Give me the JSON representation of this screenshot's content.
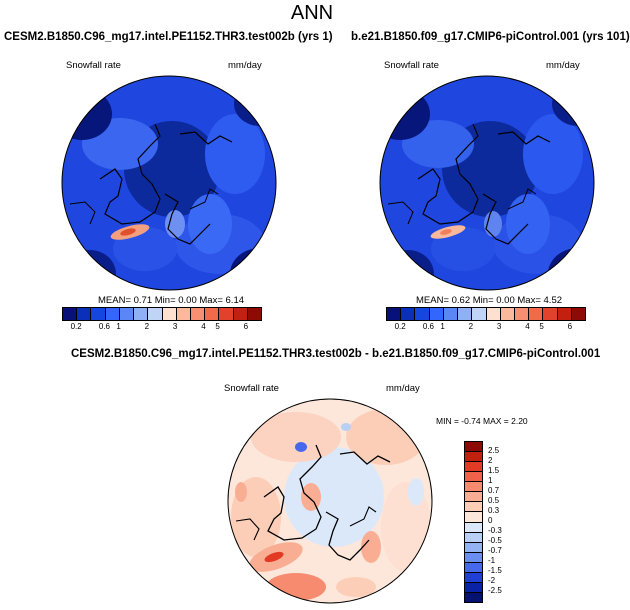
{
  "page": {
    "title": "ANN"
  },
  "panels": [
    {
      "case_title": "CESM2.B1850.C96_mg17.intel.PE1152.THR3.test002b (yrs 1)",
      "var_label": "Snowfall rate",
      "units": "mm/day",
      "stats": "MEAN=  0.71  Min=  0.00  Max=  6.14"
    },
    {
      "case_title": "b.e21.B1850.f09_g17.CMIP6-piControl.001 (yrs 101)",
      "var_label": "Snowfall rate",
      "units": "mm/day",
      "stats": "MEAN=  0.62  Min=  0.00  Max=  4.52"
    }
  ],
  "diff_panel": {
    "title": "CESM2.B1850.C96_mg17.intel.PE1152.THR3.test002b - b.e21.B1850.f09_g17.CMIP6-piControl.001",
    "var_label": "Snowfall rate",
    "units": "mm/day",
    "stats": "MIN = -0.74 MAX =   2.20"
  },
  "colorbar_main": {
    "labels": [
      "0.2",
      "0.6",
      "1",
      "2",
      "3",
      "4",
      "5",
      "6"
    ],
    "colors": [
      "#08107a",
      "#0a2fb8",
      "#1646e0",
      "#3366ff",
      "#5b86f5",
      "#8fb0f5",
      "#c0d4f7",
      "#fde0d0",
      "#fbb89c",
      "#f79072",
      "#f26a4a",
      "#e3412b",
      "#c4200f",
      "#8e0a04"
    ]
  },
  "colorbar_diff": {
    "labels": [
      "2.5",
      "2",
      "1.5",
      "1",
      "0.7",
      "0.5",
      "0.3",
      "0",
      "-0.3",
      "-0.5",
      "-0.7",
      "-1",
      "-1.5",
      "-2",
      "-2.5"
    ],
    "colors": [
      "#8b0a05",
      "#c2200e",
      "#e23a24",
      "#f2624a",
      "#f68b6f",
      "#f9ae93",
      "#fcceb8",
      "#fde6da",
      "#dbe8fa",
      "#b9d0f6",
      "#93b3f2",
      "#6b8ff0",
      "#4668ec",
      "#1f3fd6",
      "#0a22a8",
      "#061270"
    ]
  }
}
